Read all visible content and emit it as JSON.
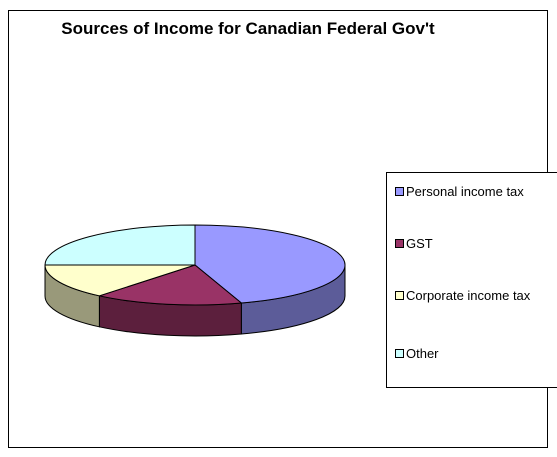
{
  "chart_data": {
    "type": "pie",
    "title": "Sources of Income for Canadian Federal Gov't",
    "three_d": true,
    "legend_position": "right",
    "categories": [
      "Personal income tax",
      "GST",
      "Corporate income tax",
      "Other"
    ],
    "values": [
      45,
      16,
      14,
      25
    ],
    "unit": "percent (estimated share)",
    "colors": [
      "#9999ff",
      "#993366",
      "#ffffcc",
      "#ccffff"
    ]
  }
}
